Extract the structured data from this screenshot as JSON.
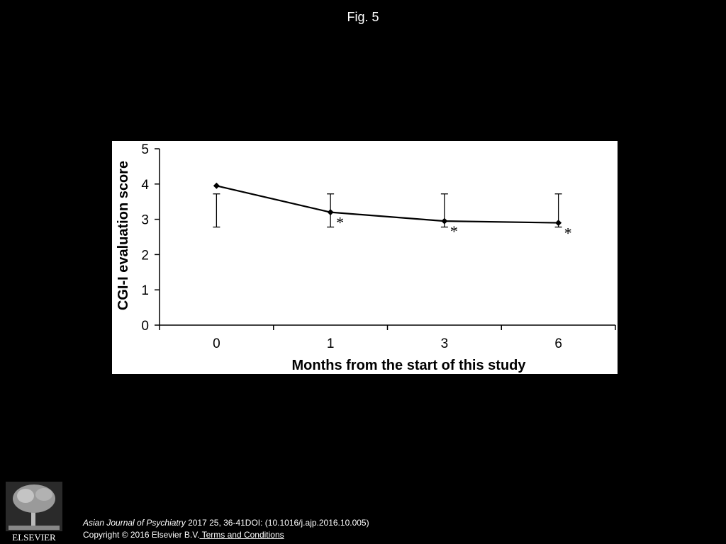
{
  "figure": {
    "title": "Fig. 5"
  },
  "chart_data": {
    "type": "line",
    "categories": [
      "0",
      "1",
      "3",
      "6"
    ],
    "values": [
      3.95,
      3.2,
      2.95,
      2.9
    ],
    "error_upper": [
      3.72,
      3.72,
      3.72,
      3.72
    ],
    "error_lower": [
      2.78,
      2.78,
      2.78,
      2.78
    ],
    "significance": [
      "",
      "*",
      "*",
      "*"
    ],
    "xlabel": "Months from the start of this study",
    "ylabel": "CGI-I evaluation score",
    "ylim": [
      0,
      5
    ],
    "yticks": [
      "0",
      "1",
      "2",
      "3",
      "4",
      "5"
    ],
    "grid": false,
    "legend": "none",
    "line_color": "#000000"
  },
  "footer": {
    "journal": "Asian Journal of Psychiatry",
    "citation_rest": " 2017 25, 36-41DOI: (10.1016/j.ajp.2016.10.005)",
    "copyright": "Copyright © 2016 Elsevier B.V.",
    "terms_label": " Terms and Conditions",
    "logo_text": "ELSEVIER"
  }
}
